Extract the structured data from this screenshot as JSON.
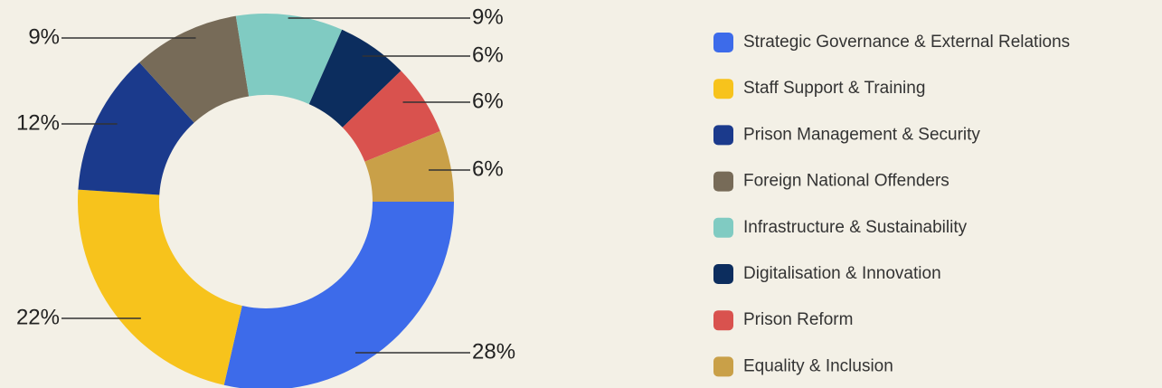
{
  "chart_data": {
    "type": "donut",
    "categories": [
      "Strategic Governance & External Relations",
      "Staff Support & Training",
      "Prison Management & Security",
      "Foreign National Offenders",
      "Infrastructure & Sustainability",
      "Digitalisation & Innovation",
      "Prison Reform",
      "Equality & Inclusion"
    ],
    "values": [
      28,
      22,
      12,
      9,
      9,
      6,
      6,
      6
    ],
    "value_labels": [
      "28%",
      "22%",
      "12%",
      "9%",
      "9%",
      "6%",
      "6%",
      "6%"
    ],
    "colors": [
      "#3d6bea",
      "#f7c31c",
      "#1b3a8c",
      "#776b58",
      "#80cbc2",
      "#0c2d5e",
      "#d9524e",
      "#c9a048"
    ],
    "legend": "right"
  }
}
